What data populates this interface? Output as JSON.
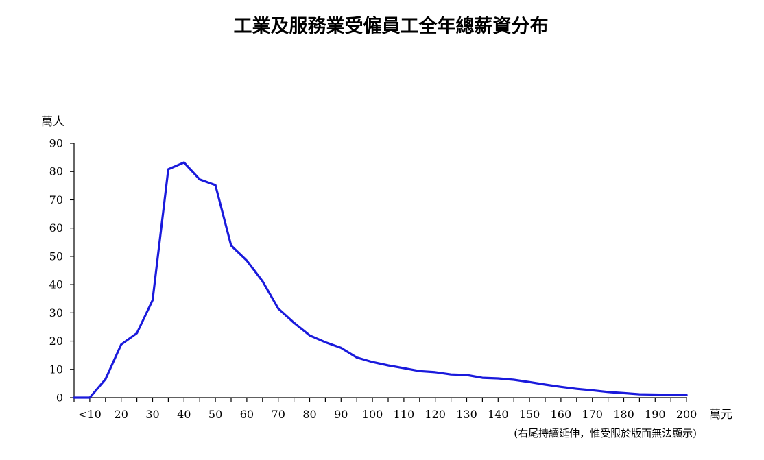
{
  "chart_data": {
    "type": "line",
    "title": "工業及服務業受僱員工全年總薪資分布",
    "ylabel": "萬人",
    "xlabel": "萬元",
    "note": "(右尾持續延伸，惟受限於版面無法顯示)",
    "ylim": [
      0,
      90
    ],
    "yticks": [
      "0",
      "10",
      "20",
      "30",
      "40",
      "50",
      "60",
      "70",
      "80",
      "90"
    ],
    "xtick_labels": [
      "<10",
      "20",
      "30",
      "40",
      "50",
      "60",
      "70",
      "80",
      "90",
      "100",
      "110",
      "120",
      "130",
      "140",
      "150",
      "160",
      "170",
      "180",
      "190",
      "200"
    ],
    "x": [
      "0",
      "<10",
      "15",
      "20",
      "25",
      "30",
      "35",
      "40",
      "45",
      "50",
      "55",
      "60",
      "65",
      "70",
      "75",
      "80",
      "85",
      "90",
      "95",
      "100",
      "105",
      "110",
      "115",
      "120",
      "125",
      "130",
      "135",
      "140",
      "145",
      "150",
      "155",
      "160",
      "165",
      "170",
      "175",
      "180",
      "185",
      "190",
      "195",
      "200"
    ],
    "grid": false,
    "series": [
      {
        "name": "",
        "color": "#1a1adc",
        "values": [
          0,
          0,
          6.5,
          18.8,
          22.8,
          34.5,
          80.8,
          83.2,
          77.2,
          75.2,
          53.8,
          48.5,
          41.2,
          31.5,
          26.5,
          22.0,
          19.6,
          17.6,
          14.2,
          12.6,
          11.4,
          10.4,
          9.4,
          9.0,
          8.2,
          8.0,
          7.0,
          6.8,
          6.3,
          5.5,
          4.6,
          3.8,
          3.1,
          2.6,
          2.0,
          1.6,
          1.2,
          1.1,
          1.0,
          0.9
        ]
      }
    ]
  }
}
